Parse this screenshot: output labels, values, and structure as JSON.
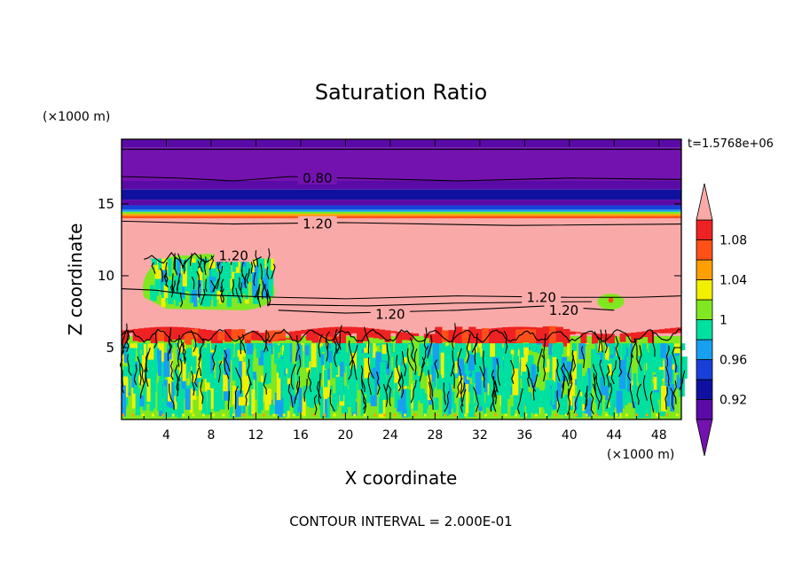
{
  "chart_data": {
    "type": "heatmap",
    "title": "Saturation Ratio",
    "xlabel": "X coordinate",
    "ylabel": "Z coordinate",
    "x_unit": "(×1000 m)",
    "y_unit": "(×1000 m)",
    "time_label": "t=1.5768e+06",
    "footer": "CONTOUR INTERVAL = 2.000E-01",
    "xlim": [
      0,
      50
    ],
    "ylim": [
      0,
      19.5
    ],
    "x_ticks": [
      "4",
      "8",
      "12",
      "16",
      "20",
      "24",
      "28",
      "32",
      "36",
      "40",
      "44",
      "48"
    ],
    "y_ticks": [
      "5",
      "10",
      "15"
    ],
    "colorbar": {
      "ticks": [
        "1.08",
        "1.04",
        "1",
        "0.96",
        "0.92"
      ],
      "levels": [
        0.9,
        0.92,
        0.94,
        0.96,
        0.98,
        1.0,
        1.02,
        1.04,
        1.06,
        1.08,
        1.1
      ],
      "colors": [
        "#7412b0",
        "#5a0aa6",
        "#1010a0",
        "#1840d8",
        "#18a0f0",
        "#00e0a0",
        "#80e820",
        "#f0f000",
        "#ffa000",
        "#ff5018",
        "#ee2222",
        "#f9aaa8"
      ]
    },
    "contour_labels": [
      {
        "text": "0.80",
        "x": 17.5,
        "z": 16.8
      },
      {
        "text": "1.20",
        "x": 17.5,
        "z": 13.6
      },
      {
        "text": "1.20",
        "x": 10.0,
        "z": 11.4
      },
      {
        "text": "1.20",
        "x": 37.5,
        "z": 8.5
      },
      {
        "text": "1.20",
        "x": 39.5,
        "z": 7.6
      },
      {
        "text": "1.20",
        "x": 24.0,
        "z": 7.3
      }
    ]
  }
}
